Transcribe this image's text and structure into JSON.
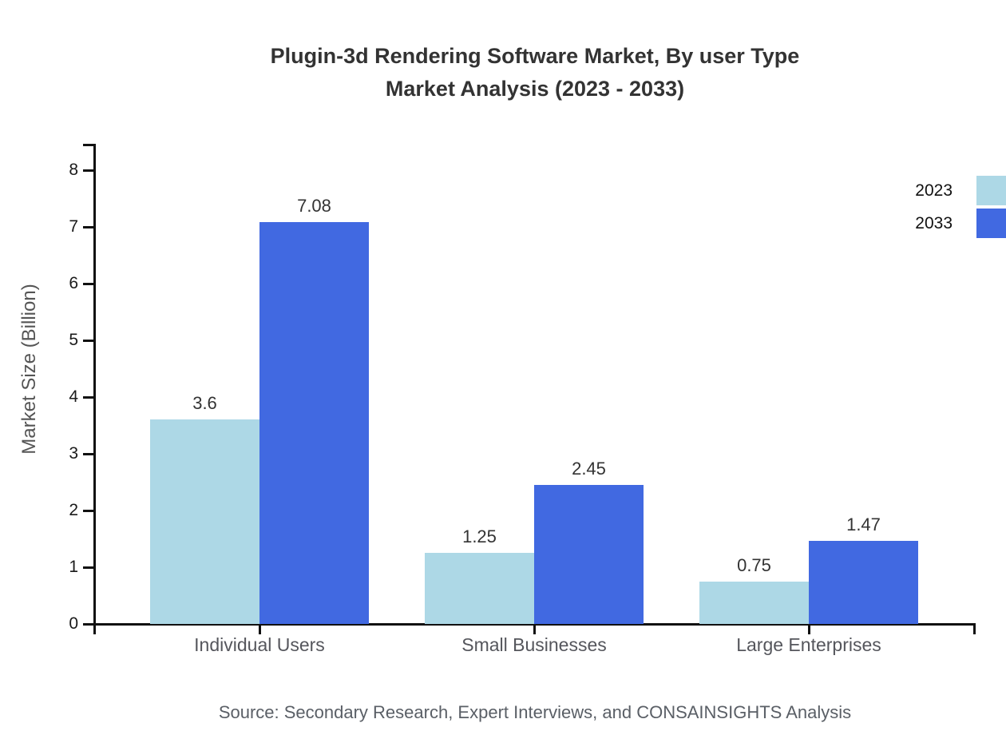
{
  "title": {
    "line1": "Plugin-3d Rendering Software Market, By user Type",
    "line2": "Market Analysis (2023 - 2033)"
  },
  "source": "Source: Secondary Research, Expert Interviews, and CONSAINSIGHTS Analysis",
  "chart_data": {
    "type": "bar",
    "title": "Plugin-3d Rendering Software Market, By user Type Market Analysis (2023 - 2033)",
    "categories": [
      "Individual Users",
      "Small Businesses",
      "Large Enterprises"
    ],
    "series": [
      {
        "name": "2023",
        "color": "#ADD8E6",
        "values": [
          3.6,
          1.25,
          0.75
        ]
      },
      {
        "name": "2033",
        "color": "#4169E1",
        "values": [
          7.08,
          2.45,
          1.47
        ]
      }
    ],
    "xlabel": "",
    "ylabel": "Market Size (Billion)",
    "ylim": [
      0,
      8
    ],
    "ytick_step": 1,
    "grid": false,
    "legend_position": "top-right",
    "axis_color": "#111111",
    "value_labels_shown": true
  }
}
